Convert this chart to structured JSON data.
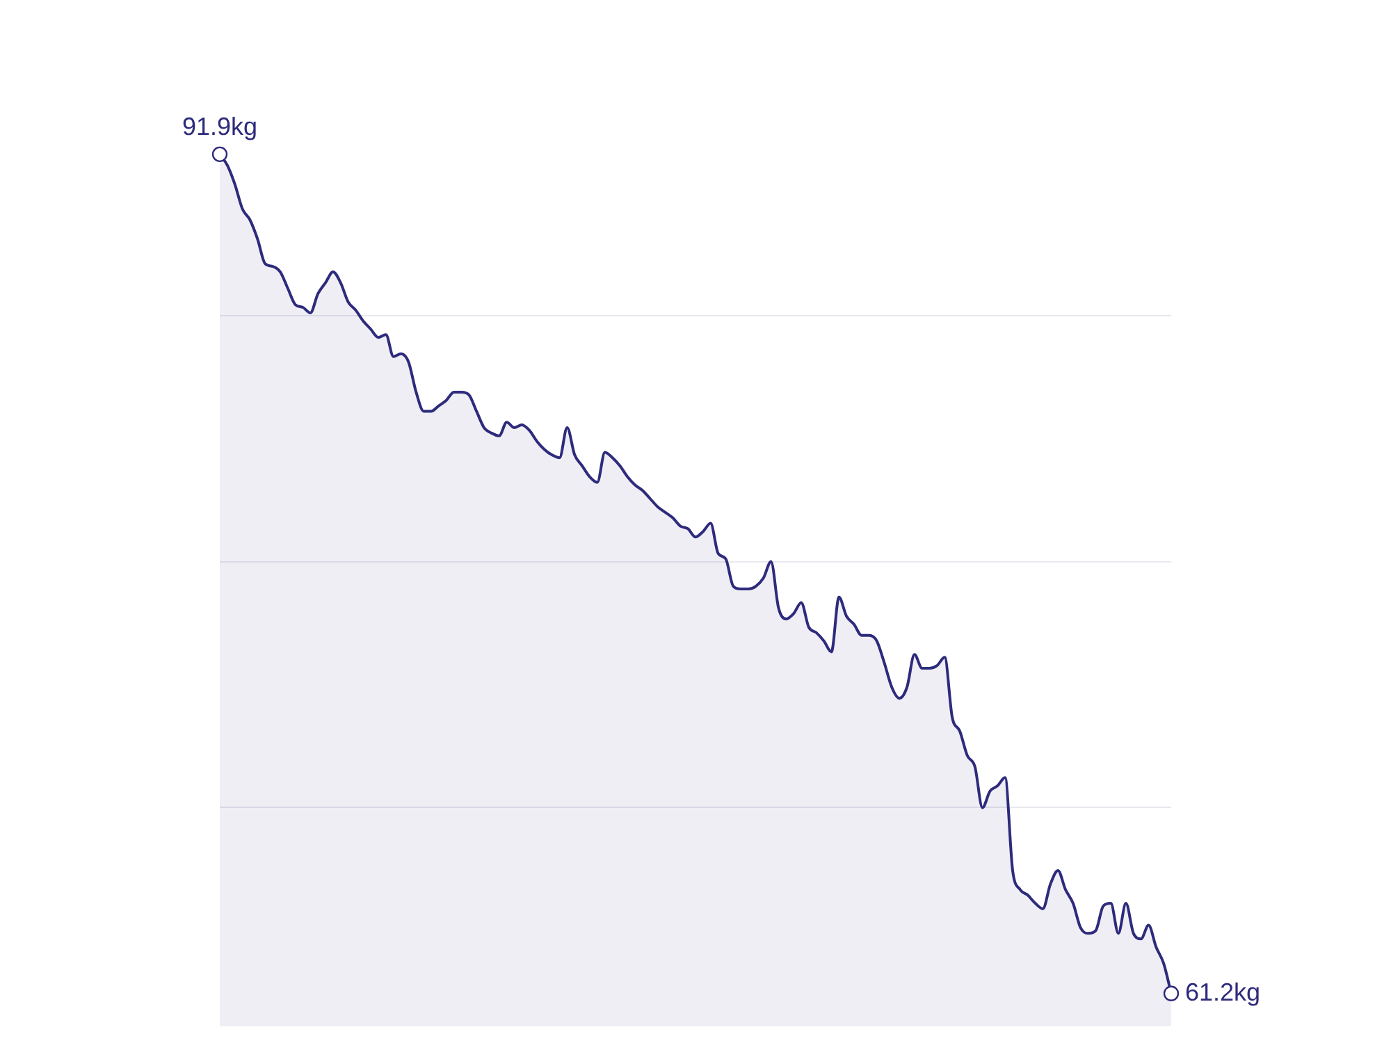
{
  "chart_data": {
    "type": "area",
    "categories": [
      null,
      null,
      null,
      null,
      null,
      null,
      null,
      null,
      null,
      null,
      null,
      null,
      null,
      null,
      null,
      null,
      null,
      null,
      null,
      null,
      null,
      null,
      null,
      null,
      null,
      null,
      null,
      null,
      null,
      null,
      null,
      null,
      null,
      null,
      null,
      null,
      null,
      null,
      null,
      null,
      null,
      null,
      null,
      null,
      null,
      null,
      null,
      null,
      null,
      null,
      null,
      null,
      null,
      null,
      null,
      null,
      null,
      null,
      null,
      null,
      null,
      null,
      null,
      null,
      null,
      null,
      null,
      null,
      null,
      null,
      null,
      null,
      null,
      null,
      null,
      null,
      null,
      null,
      null,
      null,
      null,
      null,
      null,
      null,
      null,
      null,
      null,
      null,
      null,
      null,
      null,
      null,
      null,
      null,
      null,
      null,
      null,
      null,
      null,
      null,
      null,
      null,
      null,
      null,
      null,
      null,
      null,
      null,
      null,
      null,
      null,
      null,
      null,
      null,
      null,
      null,
      null,
      null,
      null,
      null,
      null,
      null,
      null,
      null,
      null,
      null,
      null
    ],
    "series": [
      {
        "color": "#2e2b7c",
        "values": [
          91.9,
          91.5,
          90.8,
          89.9,
          89.5,
          88.8,
          87.9,
          87.8,
          87.6,
          87.0,
          86.4,
          86.3,
          86.1,
          86.8,
          87.2,
          87.6,
          87.2,
          86.5,
          86.2,
          85.8,
          85.5,
          85.2,
          85.3,
          84.5,
          84.6,
          84.3,
          83.2,
          82.5,
          82.5,
          82.7,
          82.9,
          83.2,
          83.2,
          83.1,
          82.5,
          81.9,
          81.7,
          81.6,
          82.1,
          81.9,
          82.0,
          81.8,
          81.4,
          81.1,
          80.9,
          80.8,
          81.9,
          80.9,
          80.5,
          80.1,
          79.9,
          81.0,
          80.8,
          80.5,
          80.1,
          79.8,
          79.6,
          79.3,
          79.0,
          78.8,
          78.6,
          78.3,
          78.2,
          77.9,
          78.1,
          78.4,
          77.3,
          77.1,
          76.1,
          76.0,
          76.0,
          76.1,
          76.4,
          77.0,
          75.3,
          74.9,
          75.1,
          75.5,
          74.6,
          74.4,
          74.1,
          73.7,
          75.7,
          75.0,
          74.7,
          74.3,
          74.3,
          74.1,
          73.3,
          72.4,
          72.0,
          72.4,
          73.6,
          73.1,
          73.1,
          73.2,
          73.5,
          71.3,
          70.8,
          69.9,
          69.5,
          68.0,
          68.6,
          68.8,
          69.1,
          65.7,
          65.0,
          64.8,
          64.5,
          64.3,
          65.2,
          65.7,
          65.0,
          64.5,
          63.6,
          63.4,
          63.5,
          64.4,
          64.5,
          63.4,
          64.5,
          63.4,
          63.2,
          63.7,
          62.9,
          62.3,
          61.2
        ],
        "value_labels": [
          "91.9kg",
          null,
          null,
          null,
          null,
          null,
          null,
          null,
          null,
          null,
          null,
          null,
          null,
          null,
          null,
          null,
          null,
          null,
          null,
          null,
          null,
          null,
          null,
          null,
          null,
          null,
          null,
          null,
          null,
          null,
          null,
          null,
          null,
          null,
          null,
          null,
          null,
          null,
          null,
          null,
          null,
          null,
          null,
          null,
          null,
          null,
          null,
          null,
          null,
          null,
          null,
          null,
          null,
          null,
          null,
          null,
          null,
          null,
          null,
          null,
          null,
          null,
          null,
          null,
          null,
          null,
          null,
          null,
          null,
          null,
          null,
          null,
          null,
          null,
          null,
          null,
          null,
          null,
          null,
          null,
          null,
          null,
          null,
          null,
          null,
          null,
          null,
          null,
          null,
          null,
          null,
          null,
          null,
          null,
          null,
          null,
          null,
          null,
          null,
          null,
          null,
          null,
          null,
          null,
          null,
          null,
          null,
          null,
          null,
          null,
          null,
          null,
          null,
          null,
          null,
          null,
          null,
          null,
          null,
          null,
          null,
          null,
          null,
          null,
          null,
          null,
          "61.2kg"
        ]
      }
    ],
    "yticks": [
      {
        "value": 68,
        "label": null
      },
      {
        "value": 77,
        "label": null
      },
      {
        "value": 86,
        "label": null
      }
    ],
    "grid": "y",
    "tick_labels": false
  }
}
